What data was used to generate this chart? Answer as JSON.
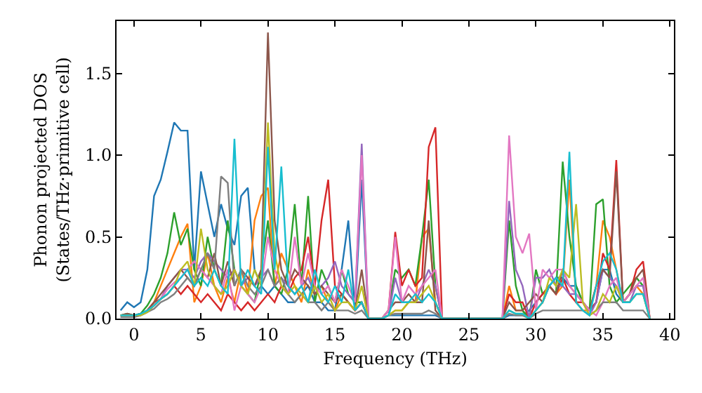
{
  "chart_data": {
    "type": "line",
    "xlabel": "Frequency (THz)",
    "ylabel": "Phonon projected DOS\n(States/THz·primitive cell)",
    "x": [
      -1,
      -0.5,
      0,
      0.5,
      1,
      1.5,
      2,
      2.5,
      3,
      3.5,
      4,
      4.5,
      5,
      5.5,
      6,
      6.5,
      7,
      7.5,
      8,
      8.5,
      9,
      9.5,
      10,
      10.5,
      11,
      11.5,
      12,
      12.5,
      13,
      13.5,
      14,
      14.5,
      15,
      15.5,
      16,
      16.5,
      17,
      17.5,
      18,
      18.5,
      19,
      19.5,
      20,
      20.5,
      21,
      21.5,
      22,
      22.5,
      23,
      23.5,
      24,
      24.5,
      25,
      25.5,
      26,
      26.5,
      27,
      27.5,
      28,
      28.5,
      29,
      29.5,
      30,
      30.5,
      31,
      31.5,
      32,
      32.5,
      33,
      33.5,
      34,
      34.5,
      35,
      35.5,
      36,
      36.5,
      37,
      37.5,
      38,
      38.5
    ],
    "xlim": [
      -1.3,
      40.3
    ],
    "xticks": [
      0,
      5,
      10,
      15,
      20,
      25,
      30,
      35,
      40
    ],
    "ylim": [
      0,
      1.82
    ],
    "yticks": [
      {
        "value": 0,
        "label": "0.0"
      },
      {
        "value": 0.5,
        "label": "0.5"
      },
      {
        "value": 1,
        "label": "1.0"
      },
      {
        "value": 1.5,
        "label": "1.5"
      }
    ],
    "grid": false,
    "marker": "none",
    "line_style": "solid",
    "series": [
      {
        "color": "#1f77b4",
        "values": [
          0.05,
          0.1,
          0.07,
          0.1,
          0.3,
          0.75,
          0.85,
          1.02,
          1.2,
          1.15,
          1.15,
          0.3,
          0.9,
          0.7,
          0.5,
          0.7,
          0.55,
          0.45,
          0.75,
          0.8,
          0.3,
          0.2,
          0.15,
          0.2,
          0.15,
          0.1,
          0.1,
          0.15,
          0.2,
          0.1,
          0.1,
          0.05,
          0.05,
          0.3,
          0.6,
          0.05,
          0.85,
          0,
          0,
          0,
          0.02,
          0.02,
          0.02,
          0.02,
          0.02,
          0.02,
          0.02,
          0.02,
          0,
          0,
          0,
          0,
          0,
          0,
          0,
          0,
          0,
          0,
          0.02,
          0.02,
          0.02,
          0.05,
          0.1,
          0.15,
          0.2,
          0.25,
          0.25,
          0.2,
          0.2,
          0.1,
          0.05,
          0.1,
          0.3,
          0.3,
          0.15,
          0.1,
          0.1,
          null,
          null,
          null
        ]
      },
      {
        "color": "#ff7f0e",
        "values": [
          null,
          null,
          null,
          null,
          0.05,
          0.1,
          0.2,
          0.3,
          0.4,
          0.5,
          0.58,
          0.1,
          0.2,
          0.4,
          0.2,
          0.1,
          0.25,
          0.1,
          0.3,
          0.15,
          0.6,
          0.75,
          0.8,
          0.2,
          0.4,
          0.3,
          0.2,
          0.1,
          0.3,
          0.15,
          0.2,
          0.1,
          0.05,
          0.15,
          0.1,
          0.05,
          0.1,
          0,
          0,
          0,
          0.02,
          0.05,
          0.05,
          0.1,
          0.1,
          0.5,
          0.55,
          0.1,
          0,
          0,
          0,
          0,
          0,
          0,
          0,
          0,
          0,
          0,
          0.2,
          0.05,
          0.05,
          0,
          0.05,
          0.1,
          0.2,
          0.15,
          0.2,
          0.85,
          0.1,
          0.05,
          0.05,
          0.2,
          0.6,
          0.5,
          0.3,
          0.1,
          0.15,
          0.2,
          0.15,
          0
        ]
      },
      {
        "color": "#2ca02c",
        "values": [
          0.02,
          0.03,
          0.02,
          0.03,
          0.08,
          0.15,
          0.25,
          0.4,
          0.65,
          0.45,
          0.55,
          0.3,
          0.2,
          0.5,
          0.3,
          0.2,
          0.6,
          0.3,
          0.2,
          0.15,
          0.1,
          0.3,
          0.6,
          0.2,
          0.15,
          0.3,
          0.7,
          0.2,
          0.75,
          0.1,
          0.3,
          0.2,
          0.1,
          0.3,
          0.15,
          0.1,
          0.1,
          0,
          0,
          0,
          0.05,
          0.3,
          0.25,
          0.3,
          0.2,
          0.5,
          0.85,
          0.2,
          0,
          0,
          0,
          0,
          0,
          0,
          0,
          0,
          0,
          0,
          0.6,
          0.2,
          0.05,
          0,
          0.3,
          0.15,
          0.2,
          0.15,
          0.96,
          0.5,
          0.2,
          0.1,
          0.05,
          0.7,
          0.73,
          0.2,
          0.1,
          0.15,
          0.2,
          0.25,
          0.2,
          0
        ]
      },
      {
        "color": "#d62728",
        "values": [
          null,
          null,
          null,
          null,
          0.05,
          0.1,
          0.12,
          0.15,
          0.2,
          0.15,
          0.2,
          0.15,
          0.1,
          0.15,
          0.1,
          0.05,
          0.15,
          0.1,
          0.05,
          0.1,
          0.05,
          0.1,
          0.15,
          0.1,
          0.2,
          0.15,
          0.25,
          0.3,
          0.5,
          0.2,
          0.6,
          0.85,
          0.2,
          0.15,
          0.1,
          0.05,
          0.1,
          0,
          0,
          0,
          0.05,
          0.53,
          0.2,
          0.3,
          0.2,
          0.25,
          1.05,
          1.17,
          0,
          0,
          0,
          0,
          0,
          0,
          0,
          0,
          0,
          0,
          0.15,
          0.1,
          0.1,
          0,
          0.1,
          0.15,
          0.2,
          0.15,
          0.25,
          0.15,
          0.1,
          0.1,
          0.05,
          0.1,
          0.4,
          0.3,
          0.97,
          0.1,
          0.15,
          0.3,
          0.35,
          0
        ]
      },
      {
        "color": "#9467bd",
        "values": [
          0.01,
          0.01,
          0.01,
          0.02,
          0.04,
          0.08,
          0.12,
          0.2,
          0.25,
          0.3,
          0.3,
          0.25,
          0.35,
          0.4,
          0.35,
          0.3,
          0.25,
          0.3,
          0.2,
          0.25,
          0.2,
          0.25,
          0.3,
          0.2,
          0.25,
          0.2,
          0.15,
          0.2,
          0.25,
          0.15,
          0.2,
          0.25,
          0.35,
          0.2,
          0.15,
          0.1,
          1.07,
          0,
          0,
          0,
          0.02,
          0.25,
          0.1,
          0.1,
          0.1,
          0.2,
          0.3,
          0.2,
          0,
          0,
          0,
          0,
          0,
          0,
          0,
          0,
          0,
          0,
          0.72,
          0.3,
          0.2,
          0,
          0.25,
          0.25,
          0.3,
          0.2,
          0.2,
          0.15,
          0.15,
          0.1,
          0.02,
          0.1,
          0.3,
          0.25,
          0.2,
          0.1,
          0.1,
          0.2,
          0.2,
          0
        ]
      },
      {
        "color": "#8c564b",
        "values": [
          0.02,
          0.03,
          0.02,
          0.03,
          0.05,
          0.1,
          0.15,
          0.2,
          0.25,
          0.3,
          0.25,
          0.2,
          0.3,
          0.25,
          0.4,
          0.2,
          0.35,
          0.2,
          0.3,
          0.25,
          0.2,
          0.3,
          1.75,
          0.6,
          0.3,
          0.2,
          0.3,
          0.25,
          0.2,
          0.15,
          0.2,
          0.15,
          0.1,
          0.15,
          0.1,
          0.05,
          0.3,
          0,
          0,
          0,
          0.05,
          0.1,
          0.1,
          0.15,
          0.1,
          0.1,
          0.6,
          0.05,
          0,
          0,
          0,
          0,
          0,
          0,
          0,
          0,
          0,
          0,
          0.1,
          0.05,
          0.05,
          0.1,
          0.15,
          0.1,
          0.2,
          0.15,
          0.3,
          0.2,
          0.15,
          0.1,
          0.05,
          0.2,
          0.3,
          0.25,
          0.9,
          0.1,
          0.15,
          0.25,
          0.3,
          0
        ]
      },
      {
        "color": "#e377c2",
        "values": [
          null,
          null,
          null,
          null,
          null,
          0.08,
          0.12,
          0.18,
          0.22,
          0.25,
          0.3,
          0.35,
          0.3,
          0.25,
          0.2,
          0.15,
          0.3,
          0.05,
          0.2,
          0.15,
          0.1,
          0.2,
          0.5,
          0.3,
          0.2,
          0.15,
          0.5,
          0.2,
          0.4,
          0.2,
          0.15,
          0.2,
          0.1,
          0.3,
          0.2,
          0.1,
          1.0,
          0,
          0,
          0,
          0.05,
          0.5,
          0.1,
          0.2,
          0.15,
          0.2,
          0.25,
          0.3,
          0,
          0,
          0,
          0,
          0,
          0,
          0,
          0,
          0,
          0,
          1.12,
          0.5,
          0.4,
          0.52,
          0.05,
          0.3,
          0.25,
          0.3,
          0.3,
          0.2,
          0.15,
          0.1,
          0.05,
          0.02,
          0.1,
          0.2,
          0.25,
          0.1,
          0.15,
          0.2,
          0.25,
          0
        ]
      },
      {
        "color": "#7f7f7f",
        "values": [
          0.01,
          0.01,
          0.01,
          0.02,
          0.04,
          0.06,
          0.1,
          0.12,
          0.15,
          0.2,
          0.25,
          0.2,
          0.3,
          0.4,
          0.3,
          0.87,
          0.83,
          0.2,
          0.3,
          0.2,
          0.15,
          0.2,
          0.3,
          0.2,
          0.25,
          0.15,
          0.1,
          0.15,
          0.1,
          0.1,
          0.05,
          0.1,
          0.05,
          0.05,
          0.05,
          0.03,
          0.05,
          0,
          0,
          0,
          0.02,
          0.03,
          0.03,
          0.03,
          0.03,
          0.03,
          0.05,
          0.03,
          0,
          0,
          0,
          0,
          0,
          0,
          0,
          0,
          0,
          0,
          0.03,
          0.02,
          0.02,
          0,
          0.03,
          0.05,
          0.05,
          0.05,
          0.05,
          0.05,
          0.05,
          0.05,
          0.02,
          0.05,
          0.1,
          0.1,
          0.1,
          0.05,
          0.05,
          0.05,
          0.05,
          0
        ]
      },
      {
        "color": "#bcbd22",
        "values": [
          0.02,
          0.02,
          0.02,
          0.02,
          0.04,
          0.08,
          0.12,
          0.15,
          0.2,
          0.3,
          0.35,
          0.2,
          0.55,
          0.3,
          0.2,
          0.15,
          0.2,
          0.3,
          0.2,
          0.15,
          0.3,
          0.2,
          1.2,
          0.4,
          0.2,
          0.15,
          0.2,
          0.15,
          0.1,
          0.2,
          0.1,
          0.15,
          0.05,
          0.1,
          0.1,
          0.05,
          0.2,
          0,
          0,
          0,
          0.02,
          0.05,
          0.05,
          0.1,
          0.1,
          0.15,
          0.2,
          0.1,
          0,
          0,
          0,
          0,
          0,
          0,
          0,
          0,
          0,
          0,
          0.05,
          0.03,
          0.03,
          0,
          0.05,
          0.1,
          0.25,
          0.2,
          0.3,
          0.25,
          0.7,
          0.1,
          0.02,
          0.05,
          0.15,
          0.1,
          0.2,
          0.1,
          0.1,
          0.15,
          0.15,
          0
        ]
      },
      {
        "color": "#17becf",
        "values": [
          0.02,
          0.02,
          0.02,
          0.03,
          0.05,
          0.08,
          0.12,
          0.15,
          0.2,
          0.25,
          0.3,
          0.2,
          0.25,
          0.2,
          0.3,
          0.2,
          0.15,
          1.1,
          0.2,
          0.3,
          0.2,
          0.15,
          1.05,
          0.3,
          0.93,
          0.2,
          0.15,
          0.2,
          0.1,
          0.3,
          0.15,
          0.1,
          0.2,
          0.1,
          0.3,
          0.05,
          0.1,
          0,
          0,
          0,
          0.02,
          0.15,
          0.1,
          0.1,
          0.15,
          0.1,
          0.15,
          0.1,
          0,
          0,
          0,
          0,
          0,
          0,
          0,
          0,
          0,
          0,
          0.05,
          0.03,
          0.03,
          0,
          0.05,
          0.1,
          0.2,
          0.25,
          0.2,
          1.02,
          0.1,
          0.05,
          0.02,
          0.2,
          0.35,
          0.4,
          0.3,
          0.1,
          0.1,
          0.15,
          0.15,
          0
        ]
      }
    ]
  }
}
